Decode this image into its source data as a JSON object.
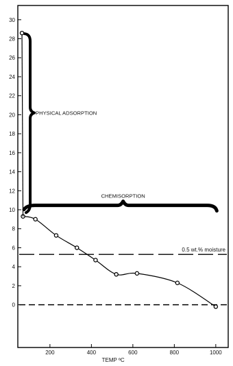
{
  "chart_data": {
    "type": "line",
    "xlabel": "TEMP ºC",
    "ylabel": "",
    "xlim": [
      45,
      1060
    ],
    "ylim": [
      -4.5,
      31.5
    ],
    "x_ticks": [
      200,
      400,
      600,
      800,
      1000
    ],
    "y_ticks": [
      0,
      2,
      4,
      6,
      8,
      10,
      12,
      14,
      16,
      18,
      20,
      22,
      24,
      26,
      28,
      30
    ],
    "series": [
      {
        "values_y_label": "y",
        "x": [
          70,
          130,
          230,
          330,
          420,
          520,
          620,
          815,
          1000
        ],
        "y": [
          9.3,
          9.0,
          7.3,
          6.0,
          4.7,
          3.2,
          3.3,
          2.3,
          -0.2
        ]
      }
    ],
    "top_point": {
      "x": 65,
      "y": 28.6
    },
    "reference_lines": [
      {
        "y": 5.3,
        "label": "0.5 wt.% moisture"
      },
      {
        "y": 0,
        "label": ""
      }
    ],
    "annotations": {
      "physical": "PHYSICAL ADSORPTION",
      "chemisorption": "CHEMISORPTION"
    }
  }
}
